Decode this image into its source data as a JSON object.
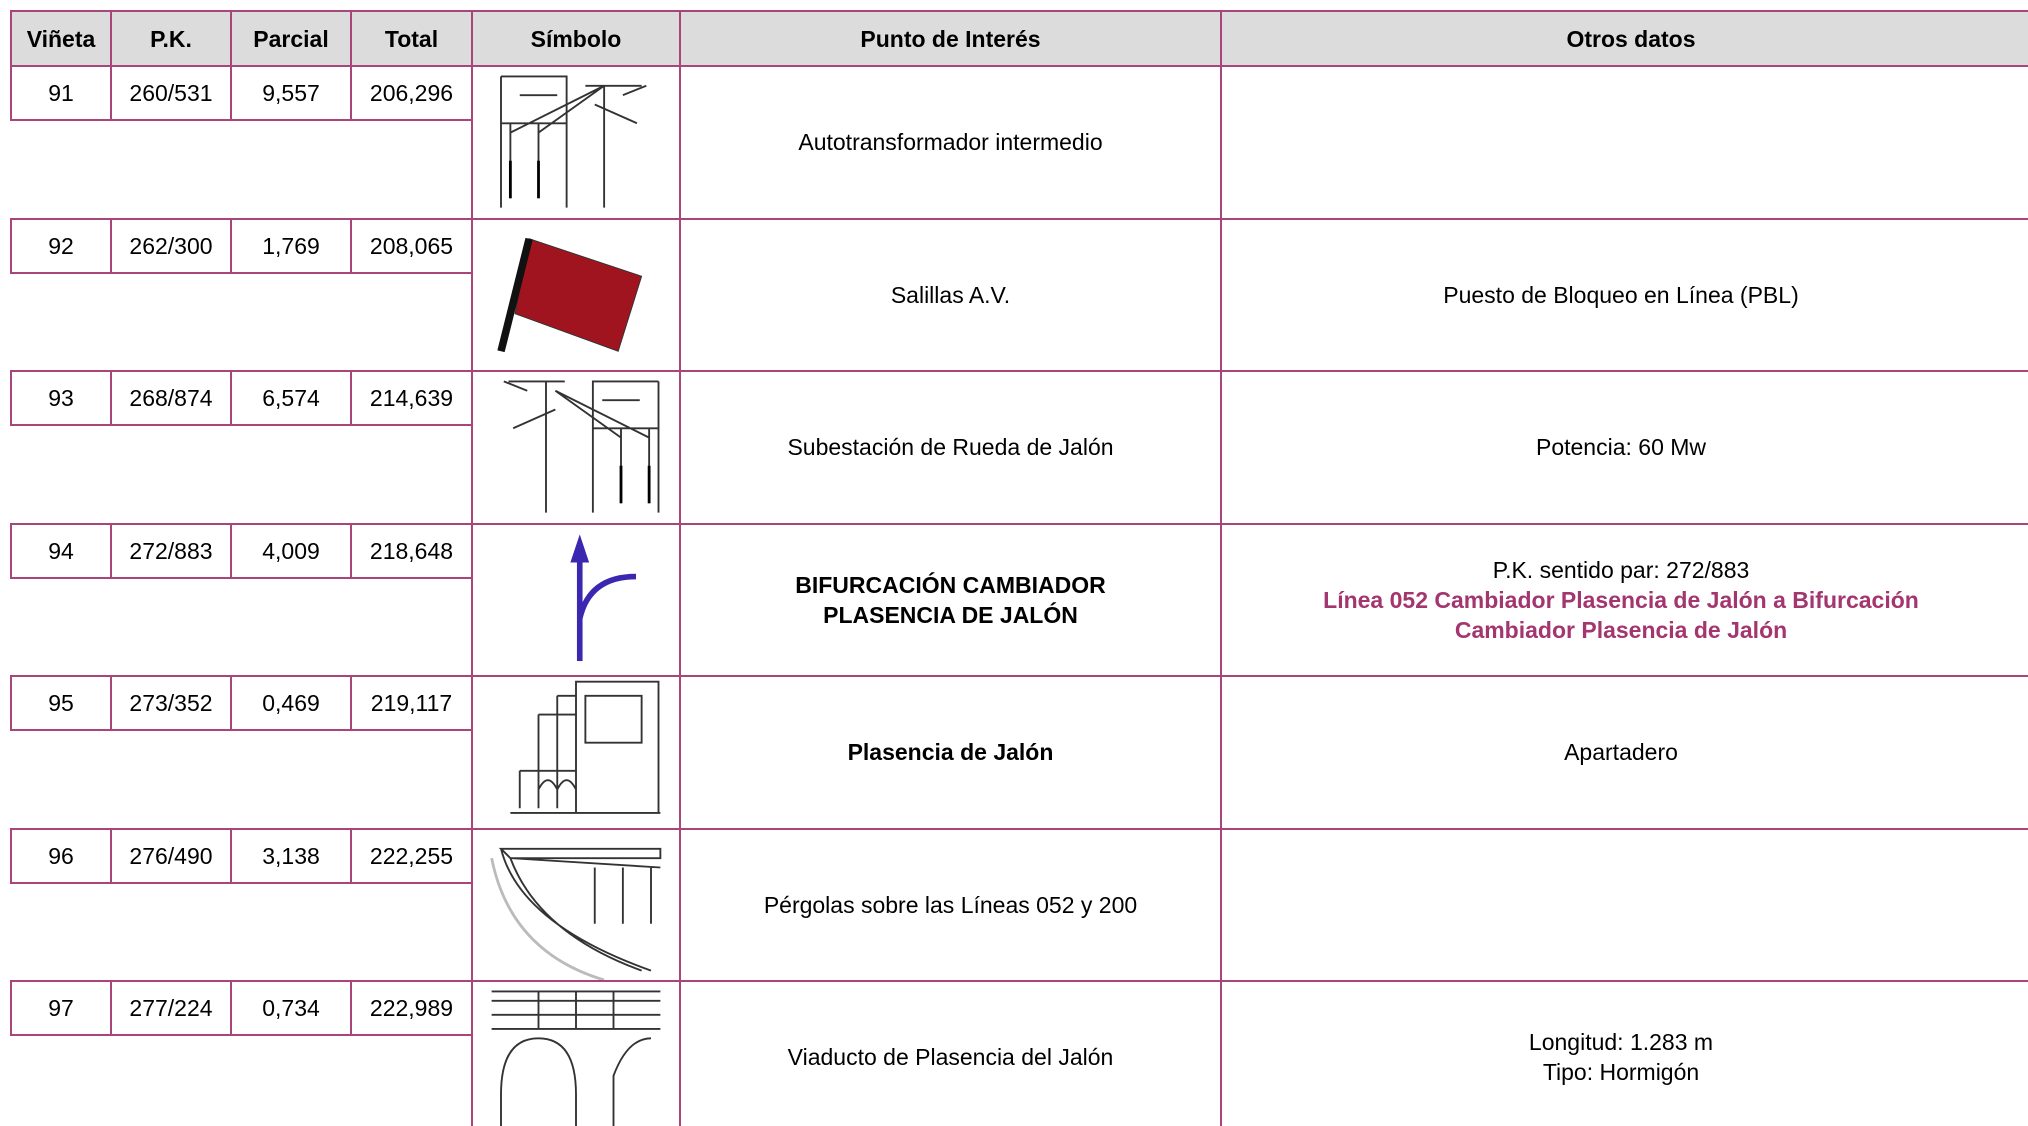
{
  "header": [
    "Viñeta",
    "P.K.",
    "Parcial",
    "Total",
    "Símbolo",
    "Punto de Interés",
    "Otros datos"
  ],
  "rows": [
    {
      "vineta": "91",
      "pk": "260/531",
      "parcial": "9,557",
      "total": "206,296",
      "punto": [
        "Autotransformador intermedio"
      ],
      "otros": []
    },
    {
      "vineta": "92",
      "pk": "262/300",
      "parcial": "1,769",
      "total": "208,065",
      "punto": [
        "Salillas A.V."
      ],
      "otros": [
        {
          "text": "Puesto de Bloqueo en Línea (PBL)"
        }
      ]
    },
    {
      "vineta": "93",
      "pk": "268/874",
      "parcial": "6,574",
      "total": "214,639",
      "punto": [
        "Subestación de Rueda de Jalón"
      ],
      "otros": [
        {
          "text": "Potencia: 60 Mw"
        }
      ]
    },
    {
      "vineta": "94",
      "pk": "272/883",
      "parcial": "4,009",
      "total": "218,648",
      "punto": [
        "BIFURCACIÓN CAMBIADOR",
        "PLASENCIA DE JALÓN"
      ],
      "punto_bold": true,
      "otros": [
        {
          "text": "P.K. sentido par: 272/883"
        },
        {
          "text": "Línea 052 Cambiador Plasencia de Jalón a Bifurcación",
          "color": "#a3356f",
          "bold": true
        },
        {
          "text": "Cambiador Plasencia de Jalón",
          "color": "#a3356f",
          "bold": true
        }
      ]
    },
    {
      "vineta": "95",
      "pk": "273/352",
      "parcial": "0,469",
      "total": "219,117",
      "punto": [
        "Plasencia de Jalón"
      ],
      "punto_bold": true,
      "otros": [
        {
          "text": "Apartadero"
        }
      ]
    },
    {
      "vineta": "96",
      "pk": "276/490",
      "parcial": "3,138",
      "total": "222,255",
      "punto": [
        "Pérgolas sobre las Líneas 052 y 200"
      ],
      "otros": []
    },
    {
      "vineta": "97",
      "pk": "277/224",
      "parcial": "0,734",
      "total": "222,989",
      "punto": [
        "Viaducto de Plasencia del Jalón"
      ],
      "otros": [
        {
          "text": "Longitud: 1.283 m"
        },
        {
          "text": "Tipo: Hormigón"
        }
      ]
    }
  ]
}
